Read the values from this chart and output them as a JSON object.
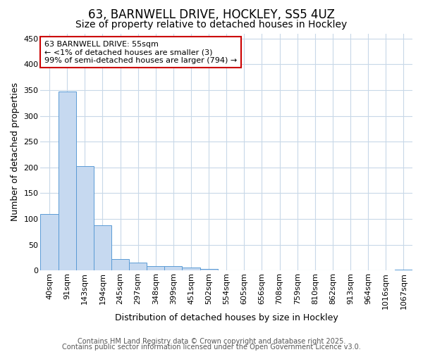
{
  "title1": "63, BARNWELL DRIVE, HOCKLEY, SS5 4UZ",
  "title2": "Size of property relative to detached houses in Hockley",
  "xlabel": "Distribution of detached houses by size in Hockley",
  "ylabel": "Number of detached properties",
  "categories": [
    "40sqm",
    "91sqm",
    "143sqm",
    "194sqm",
    "245sqm",
    "297sqm",
    "348sqm",
    "399sqm",
    "451sqm",
    "502sqm",
    "554sqm",
    "605sqm",
    "656sqm",
    "708sqm",
    "759sqm",
    "810sqm",
    "862sqm",
    "913sqm",
    "964sqm",
    "1016sqm",
    "1067sqm"
  ],
  "values": [
    110,
    348,
    203,
    88,
    22,
    15,
    9,
    8,
    6,
    3,
    0,
    0,
    0,
    0,
    0,
    0,
    0,
    0,
    0,
    0,
    2
  ],
  "bar_color": "#c6d9f0",
  "bar_edge_color": "#5a9bd5",
  "ylim": [
    0,
    460
  ],
  "yticks": [
    0,
    50,
    100,
    150,
    200,
    250,
    300,
    350,
    400,
    450
  ],
  "annotation_text": "63 BARNWELL DRIVE: 55sqm\n← <1% of detached houses are smaller (3)\n99% of semi-detached houses are larger (794) →",
  "annotation_box_color": "#ffffff",
  "annotation_box_edge": "#cc0000",
  "footer1": "Contains HM Land Registry data © Crown copyright and database right 2025.",
  "footer2": "Contains public sector information licensed under the Open Government Licence v3.0.",
  "bg_color": "#ffffff",
  "grid_color": "#c8d8e8",
  "title1_fontsize": 12,
  "title2_fontsize": 10,
  "axis_label_fontsize": 9,
  "tick_fontsize": 8,
  "annotation_fontsize": 8,
  "footer_fontsize": 7
}
